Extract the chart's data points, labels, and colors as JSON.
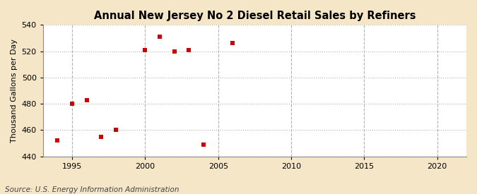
{
  "title": "Annual New Jersey No 2 Diesel Retail Sales by Refiners",
  "ylabel": "Thousand Gallons per Day",
  "source_text": "Source: U.S. Energy Information Administration",
  "x_years": [
    1994,
    1995,
    1996,
    1997,
    1998,
    2000,
    2001,
    2002,
    2003,
    2004,
    2006
  ],
  "y_values": [
    452,
    480,
    483,
    455,
    460,
    521,
    531,
    520,
    521,
    449,
    526
  ],
  "xlim": [
    1993,
    2022
  ],
  "ylim": [
    440,
    540
  ],
  "yticks": [
    440,
    460,
    480,
    500,
    520,
    540
  ],
  "xticks": [
    1995,
    2000,
    2005,
    2010,
    2015,
    2020
  ],
  "marker_color": "#cc0000",
  "marker": "s",
  "marker_size": 5,
  "outer_bg_color": "#f5e6c8",
  "plot_bg_color": "#ffffff",
  "grid_color": "#aaaaaa",
  "title_fontsize": 10.5,
  "label_fontsize": 8,
  "tick_fontsize": 8,
  "source_fontsize": 7.5
}
